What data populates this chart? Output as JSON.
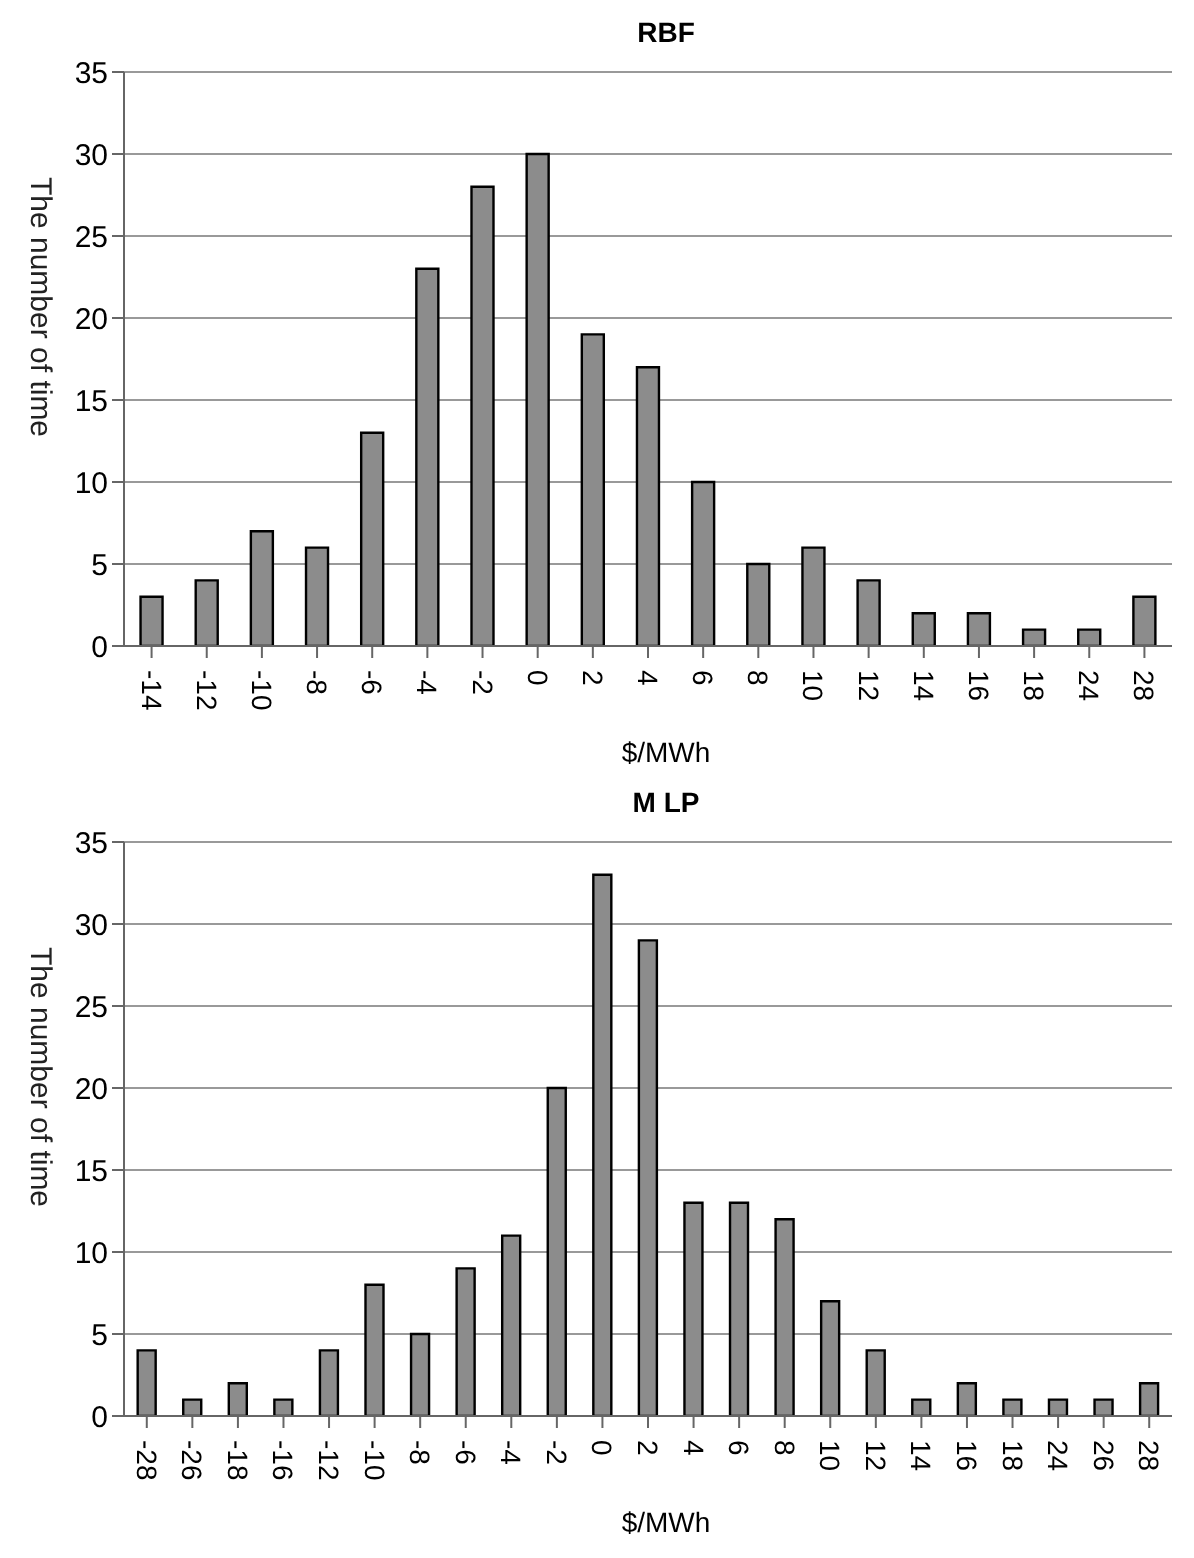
{
  "chart_data": [
    {
      "type": "bar",
      "title": "RBF",
      "xlabel": "$/MWh",
      "ylabel": "The number of time",
      "categories": [
        "-14",
        "-12",
        "-10",
        "-8",
        "-6",
        "-4",
        "-2",
        "0",
        "2",
        "4",
        "6",
        "8",
        "10",
        "12",
        "14",
        "16",
        "18",
        "24",
        "28"
      ],
      "series": [
        {
          "color": "#8c8c8c",
          "values": [
            3,
            4,
            7,
            6,
            13,
            23,
            28,
            30,
            19,
            17,
            10,
            5,
            6,
            4,
            2,
            2,
            1,
            1,
            3
          ]
        }
      ],
      "ylim": [
        0,
        35
      ],
      "yticks": [
        0,
        5,
        10,
        15,
        20,
        25,
        30,
        35
      ],
      "grid": "y",
      "legend": false
    },
    {
      "type": "bar",
      "title": "M LP",
      "xlabel": "$/MWh",
      "ylabel": "The number of time",
      "categories": [
        "-28",
        "-26",
        "-18",
        "-16",
        "-12",
        "-10",
        "-8",
        "-6",
        "-4",
        "-2",
        "0",
        "2",
        "4",
        "6",
        "8",
        "10",
        "12",
        "14",
        "16",
        "18",
        "24",
        "26",
        "28"
      ],
      "series": [
        {
          "color": "#8c8c8c",
          "values": [
            4,
            1,
            2,
            1,
            4,
            8,
            5,
            9,
            11,
            20,
            33,
            29,
            13,
            13,
            12,
            7,
            4,
            1,
            2,
            1,
            1,
            1,
            2
          ]
        }
      ],
      "ylim": [
        0,
        35
      ],
      "yticks": [
        0,
        5,
        10,
        15,
        20,
        25,
        30,
        35
      ],
      "grid": "y",
      "legend": false
    }
  ]
}
